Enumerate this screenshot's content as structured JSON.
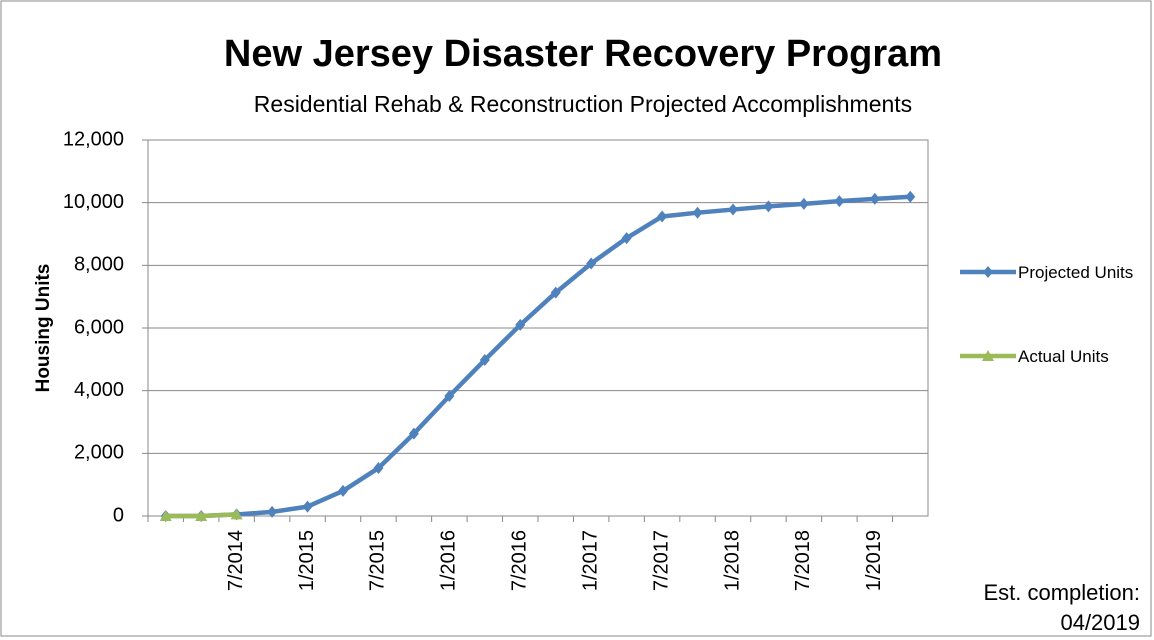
{
  "chart_data": {
    "type": "line",
    "title": "New Jersey Disaster Recovery Program",
    "subtitle": "Residential Rehab & Reconstruction Projected Accomplishments",
    "y_label": "Housing Units",
    "annotation": "Est. completion: 04/2019",
    "categories": [
      null,
      null,
      "7/2014",
      null,
      "1/2015",
      null,
      "7/2015",
      null,
      "1/2016",
      null,
      "7/2016",
      null,
      "1/2017",
      null,
      "7/2017",
      null,
      "1/2018",
      null,
      "7/2018",
      null,
      "1/2019",
      null
    ],
    "series": [
      {
        "name": "Projected Units",
        "color": "#4f81bd",
        "marker": "diamond",
        "values": [
          0,
          0,
          50,
          130,
          300,
          800,
          1530,
          2630,
          3830,
          4980,
          6100,
          7130,
          8060,
          8870,
          9560,
          9680,
          9780,
          9880,
          9960,
          10050,
          10120,
          10190
        ]
      },
      {
        "name": "Actual Units",
        "color": "#9bbb59",
        "marker": "triangle",
        "values": [
          0,
          0,
          50,
          null,
          null,
          null,
          null,
          null,
          null,
          null,
          null,
          null,
          null,
          null,
          null,
          null,
          null,
          null,
          null,
          null,
          null,
          null
        ]
      }
    ],
    "ylim": [
      0,
      12000
    ],
    "yticks": [
      0,
      {
        "value": 2000,
        "label": "2,000"
      },
      {
        "value": 4000,
        "label": "4,000"
      },
      {
        "value": 6000,
        "label": "6,000"
      },
      {
        "value": 8000,
        "label": "8,000"
      },
      {
        "value": 10000,
        "label": "10,000"
      },
      {
        "value": 12000,
        "label": "12,000"
      }
    ],
    "grid": true,
    "legend": "right"
  }
}
